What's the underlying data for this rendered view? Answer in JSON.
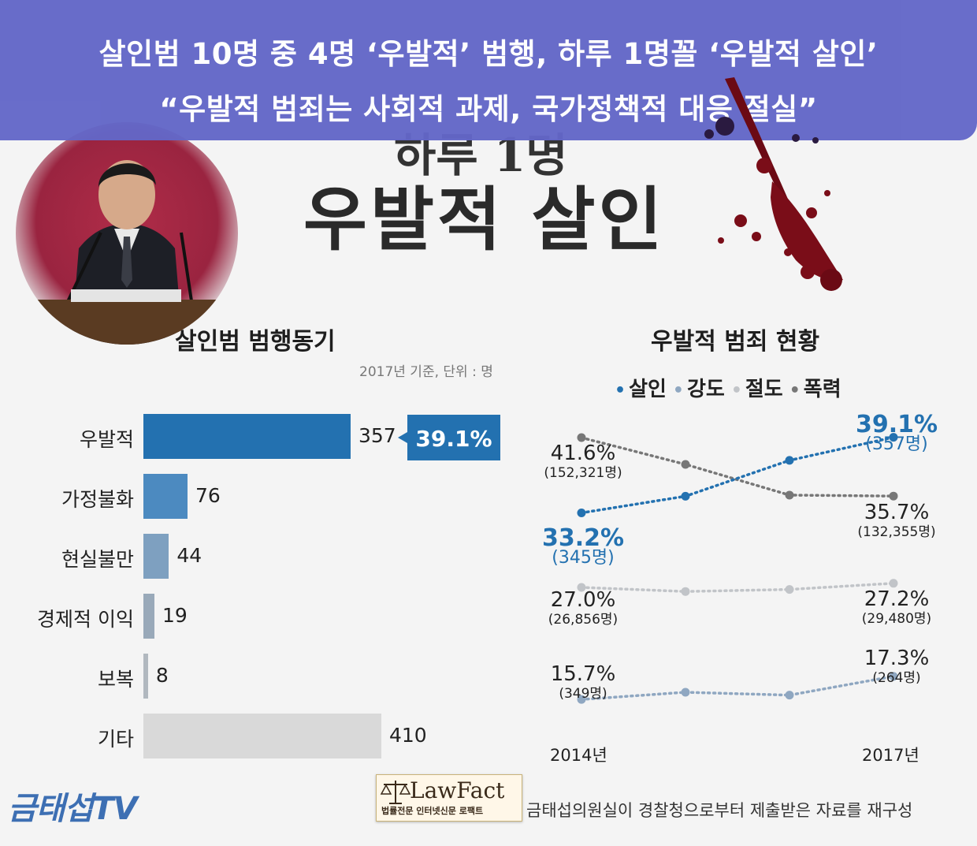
{
  "header": {
    "headline_1": "살인범 10명 중 4명 ‘우발적’ 범행, 하루 1명꼴 ‘우발적 살인’",
    "headline_2": "“우발적 범죄는 사회적 과제, 국가정책적 대응 절실”"
  },
  "title_art": {
    "sub": "하루 1명",
    "main": "우발적 살인"
  },
  "colors": {
    "banner": "#6367c8",
    "murder": "#2371b0",
    "robbery": "#8fa7c1",
    "theft": "#c1c4c8",
    "violence": "#777777",
    "other_bar": "#d9d9d9"
  },
  "chart_data": [
    {
      "type": "bar",
      "title": "살인범 범행동기",
      "note": "2017년 기준, 단위 : 명",
      "categories": [
        "우발적",
        "가정불화",
        "현실불만",
        "경제적 이익",
        "보복",
        "기타"
      ],
      "values": [
        357,
        76,
        44,
        19,
        8,
        410
      ],
      "colors": [
        "#2371b0",
        "#4c8ac0",
        "#7ea0c0",
        "#99a9b9",
        "#b1b8bf",
        "#d9d9d9"
      ],
      "callout": {
        "category": "우발적",
        "label": "39.1%"
      }
    },
    {
      "type": "line",
      "title": "우발적 범죄 현황",
      "x": [
        "2014년",
        "",
        "",
        "2017년"
      ],
      "series": [
        {
          "name": "살인",
          "values": [
            33.2,
            34.5,
            37.3,
            39.1
          ],
          "start_label": "33.2%",
          "start_sub": "(345명)",
          "end_label": "39.1%",
          "end_sub": "(357명)"
        },
        {
          "name": "강도",
          "values": [
            15.7,
            16.2,
            16.0,
            17.3
          ],
          "start_label": "15.7%",
          "start_sub": "(349명)",
          "end_label": "17.3%",
          "end_sub": "(264명)"
        },
        {
          "name": "절도",
          "values": [
            27.0,
            26.8,
            26.9,
            27.2
          ],
          "start_label": "27.0%",
          "start_sub": "(26,856명)",
          "end_label": "27.2%",
          "end_sub": "(29,480명)"
        },
        {
          "name": "폭력",
          "values": [
            41.6,
            38.9,
            35.8,
            35.7
          ],
          "start_label": "41.6%",
          "start_sub": "(152,321명)",
          "end_label": "35.7%",
          "end_sub": "(132,355명)"
        }
      ]
    }
  ],
  "footer": {
    "logo": "금태섭TV",
    "lawfact_name": "LawFact",
    "lawfact_sub": "법률전문 인터넷신문 로팩트",
    "source": "금태섭의원실이 경찰청으로부터 제출받은 자료를 재구성"
  }
}
